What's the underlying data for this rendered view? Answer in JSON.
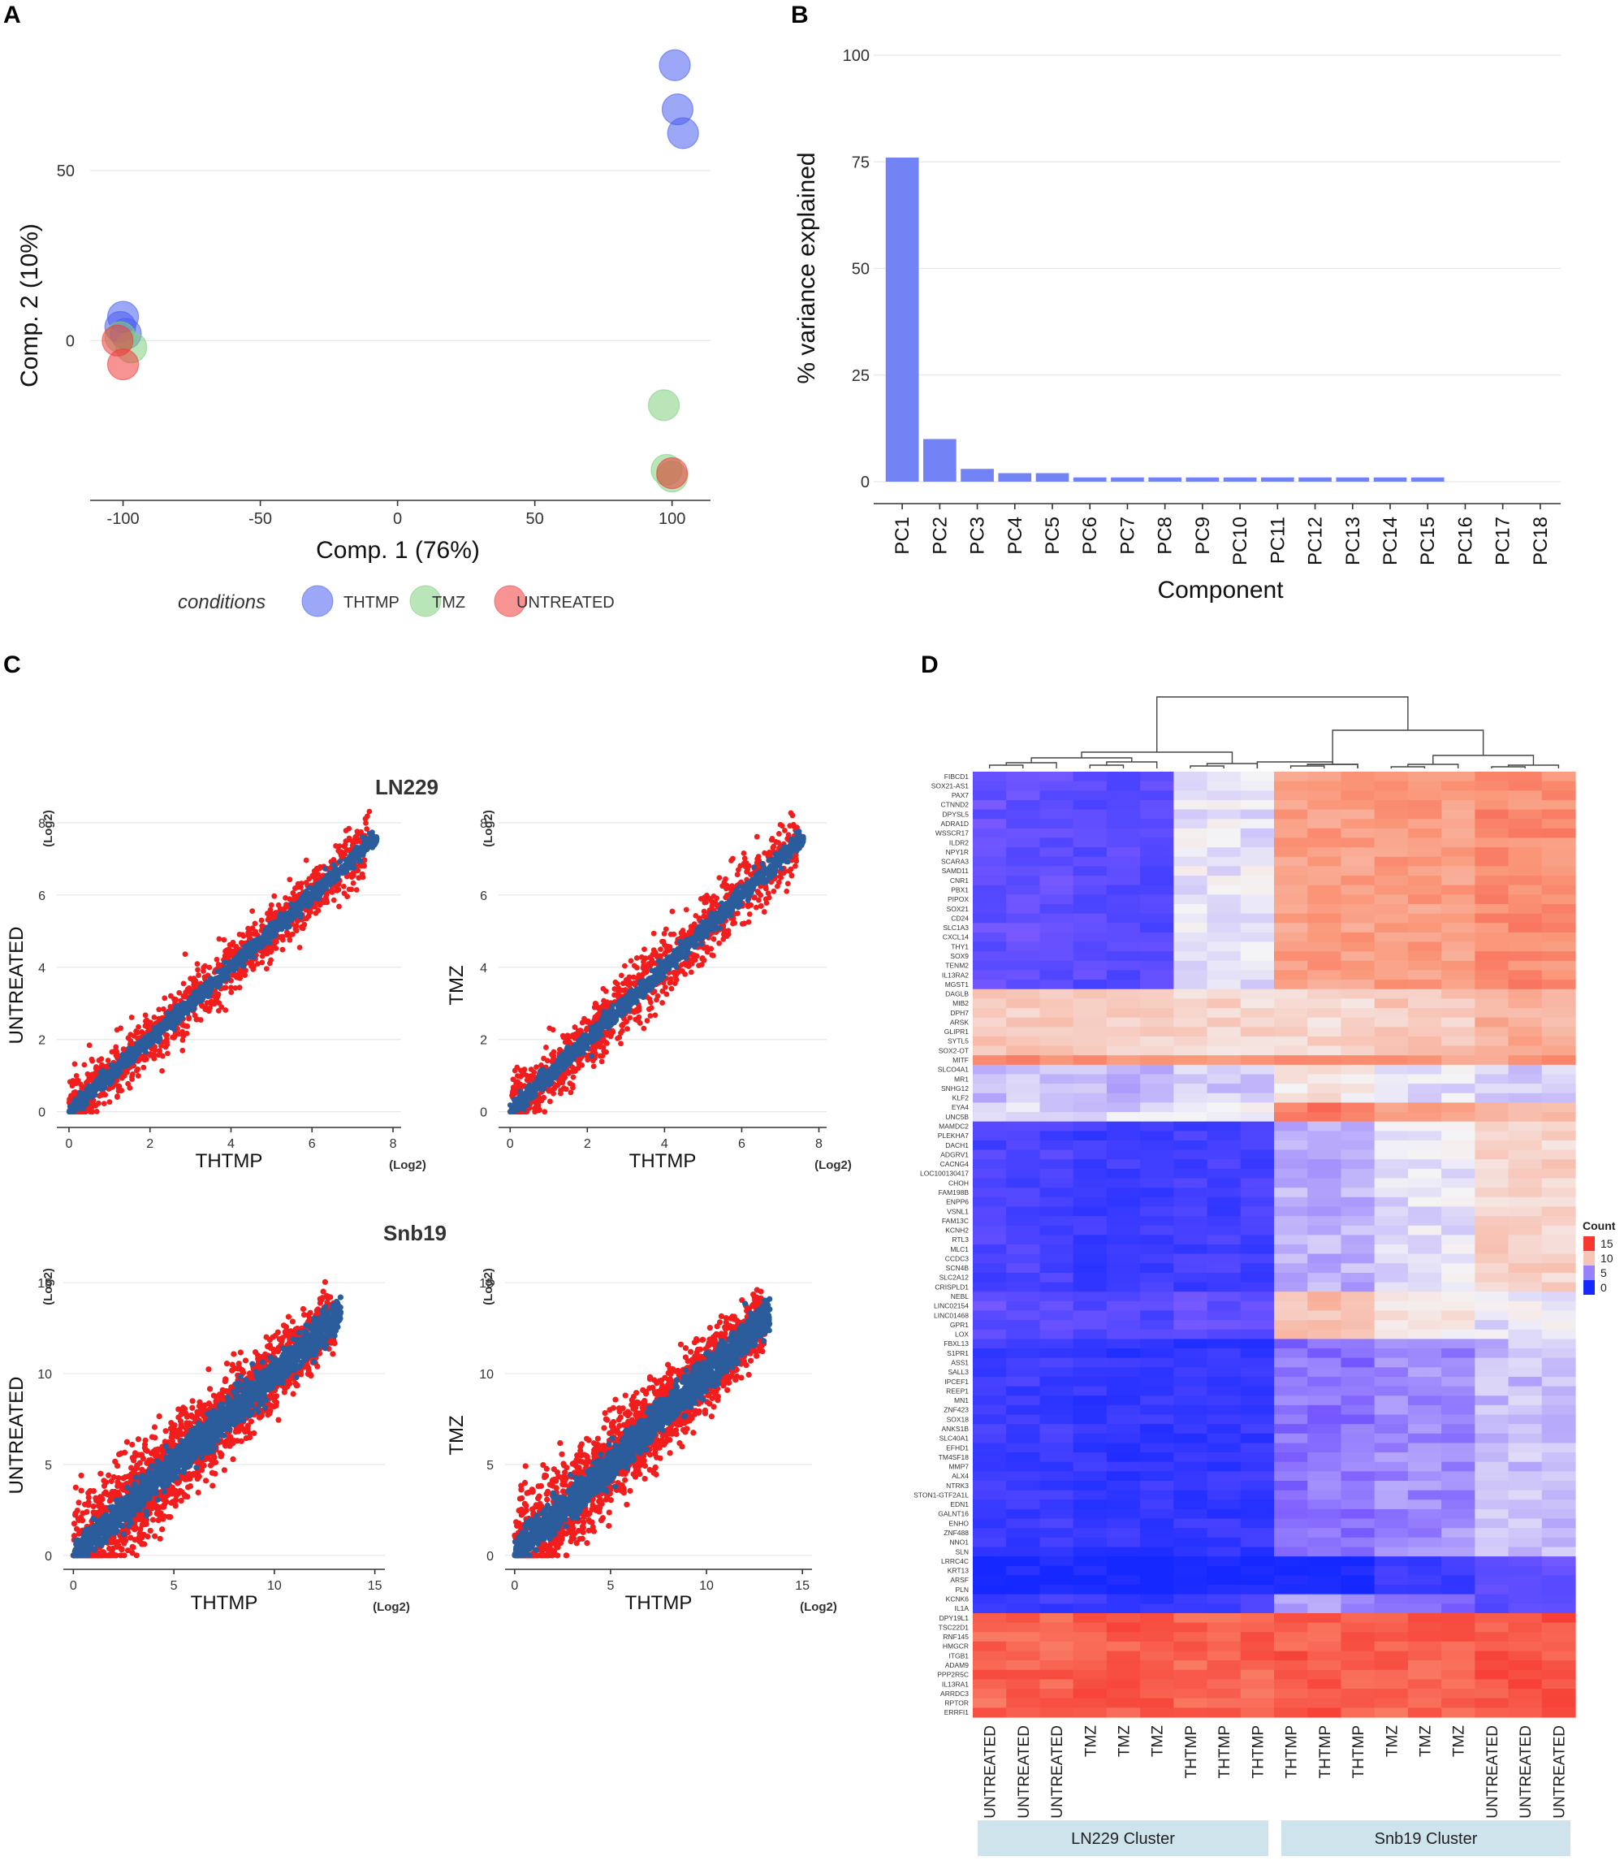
{
  "panels": {
    "a": "A",
    "b": "B",
    "c": "C",
    "d": "D"
  },
  "colors": {
    "thtmp": "#4a5ff0",
    "tmz": "#7fcf7f",
    "untreated": "#f23b3b",
    "bar": "#7283f5",
    "scatter_red": "#f21d1d",
    "scatter_blue": "#2b5c9c",
    "cluster_box": "#cfe3ec"
  },
  "chart_data": [
    {
      "id": "pca",
      "type": "scatter",
      "xlabel": "Comp. 1 (76%)",
      "ylabel": "Comp. 2 (10%)",
      "xticks": [
        -100,
        -50,
        0,
        50,
        100
      ],
      "yticks": [
        0,
        50
      ],
      "xlim": [
        -112,
        114
      ],
      "ylim": [
        -47,
        93
      ],
      "legend_title": "conditions",
      "legend": [
        "THTMP",
        "TMZ",
        "UNTREATED"
      ],
      "points": [
        {
          "group": "THTMP",
          "x": 101,
          "y": 81
        },
        {
          "group": "THTMP",
          "x": 102,
          "y": 68
        },
        {
          "group": "THTMP",
          "x": 104,
          "y": 61
        },
        {
          "group": "THTMP",
          "x": -100,
          "y": 7
        },
        {
          "group": "THTMP",
          "x": -101,
          "y": 4
        },
        {
          "group": "THTMP",
          "x": -99,
          "y": 2
        },
        {
          "group": "TMZ",
          "x": 97,
          "y": -19
        },
        {
          "group": "TMZ",
          "x": 98,
          "y": -38
        },
        {
          "group": "TMZ",
          "x": 100,
          "y": -40
        },
        {
          "group": "TMZ",
          "x": -101,
          "y": 1
        },
        {
          "group": "TMZ",
          "x": -97,
          "y": -2
        },
        {
          "group": "UNTREATED",
          "x": 100,
          "y": -39
        },
        {
          "group": "UNTREATED",
          "x": -102,
          "y": 0
        },
        {
          "group": "UNTREATED",
          "x": -100,
          "y": -7
        }
      ]
    },
    {
      "id": "scree",
      "type": "bar",
      "xlabel": "Component",
      "ylabel": "% variance explained",
      "categories": [
        "PC1",
        "PC2",
        "PC3",
        "PC4",
        "PC5",
        "PC6",
        "PC7",
        "PC8",
        "PC9",
        "PC10",
        "PC11",
        "PC12",
        "PC13",
        "PC14",
        "PC15",
        "PC16",
        "PC17",
        "PC18"
      ],
      "values": [
        76,
        10,
        3,
        2,
        2,
        1,
        1,
        1,
        1,
        1,
        1,
        1,
        1,
        1,
        1,
        0,
        0,
        0
      ],
      "yticks": [
        0,
        25,
        50,
        75,
        100
      ],
      "ylim": [
        0,
        100
      ]
    },
    {
      "id": "ln229_untreated",
      "type": "scatter",
      "group_title": "LN229",
      "xlabel": "THTMP",
      "ylabel": "UNTREATED",
      "unit": "(Log2)",
      "xticks": [
        0,
        2,
        4,
        6,
        8
      ],
      "yticks": [
        0,
        2,
        4,
        6,
        8
      ],
      "xlim": [
        -0.3,
        8.2
      ],
      "ylim": [
        -0.3,
        8.2
      ],
      "max": 7.6,
      "spread": 0.38
    },
    {
      "id": "ln229_tmz",
      "type": "scatter",
      "xlabel": "THTMP",
      "ylabel": "TMZ",
      "unit": "(Log2)",
      "xticks": [
        0,
        2,
        4,
        6,
        8
      ],
      "yticks": [
        0,
        2,
        4,
        6,
        8
      ],
      "xlim": [
        -0.3,
        8.2
      ],
      "ylim": [
        -0.3,
        8.2
      ],
      "max": 7.6,
      "spread": 0.42
    },
    {
      "id": "snb19_untreated",
      "type": "scatter",
      "group_title": "Snb19",
      "xlabel": "THTMP",
      "ylabel": "UNTREATED",
      "unit": "(Log2)",
      "xticks": [
        0,
        5,
        10,
        15
      ],
      "yticks": [
        0,
        5,
        10,
        15
      ],
      "xlim": [
        -0.5,
        15.5
      ],
      "ylim": [
        -0.5,
        15.5
      ],
      "max": 13.3,
      "spread": 1.3
    },
    {
      "id": "snb19_tmz",
      "type": "scatter",
      "xlabel": "THTMP",
      "ylabel": "TMZ",
      "unit": "(Log2)",
      "xticks": [
        0,
        5,
        10,
        15
      ],
      "yticks": [
        0,
        5,
        10,
        15
      ],
      "xlim": [
        -0.5,
        15.5
      ],
      "ylim": [
        -0.5,
        15.5
      ],
      "max": 13.3,
      "spread": 1.3
    },
    {
      "id": "heatmap",
      "type": "heatmap",
      "legend_title": "Count",
      "legend_ticks": [
        15,
        10,
        5,
        0
      ],
      "range": [
        0,
        16
      ],
      "columns": [
        "UNTREATED",
        "UNTREATED",
        "UNTREATED",
        "TMZ",
        "TMZ",
        "TMZ",
        "THTMP",
        "THTMP",
        "THTMP",
        "THTMP",
        "THTMP",
        "THTMP",
        "TMZ",
        "TMZ",
        "TMZ",
        "UNTREATED",
        "UNTREATED",
        "UNTREATED"
      ],
      "clusters": [
        "LN229 Cluster",
        "Snb19 Cluster"
      ],
      "genes": [
        "FIBCD1",
        "SOX21-AS1",
        "PAX7",
        "CTNND2",
        "DPYSL5",
        "ADRA1D",
        "WSSCR17",
        "ILDR2",
        "NPY1R",
        "SCARA3",
        "SAMD11",
        "CNR1",
        "PBX1",
        "PIPOX",
        "SOX21",
        "CD24",
        "SLC1A3",
        "CXCL14",
        "THY1",
        "SOX9",
        "TENM2",
        "IL13RA2",
        "MGST1",
        "DAGLB",
        "MIB2",
        "DPH7",
        "ARSK",
        "GLIPR1",
        "SYTL5",
        "SOX2-OT",
        "MITF",
        "SLCO4A1",
        "MR1",
        "SNHG12",
        "KLF2",
        "EYA4",
        "UNC5B",
        "MAMDC2",
        "PLEKHA7",
        "DACH1",
        "ADGRV1",
        "CACNG4",
        "LOC100130417",
        "CHOH",
        "FAM198B",
        "ENPP6",
        "VSNL1",
        "FAM13C",
        "KCNH2",
        "RTL3",
        "MLC1",
        "CCDC3",
        "SCN4B",
        "SLC2A12",
        "CRISPLD1",
        "NEBL",
        "LINC02154",
        "LINC01468",
        "GPR1",
        "LOX",
        "FBXL13",
        "S1PR1",
        "ASS1",
        "SALL3",
        "IPCEF1",
        "REEP1",
        "MN1",
        "ZNF423",
        "SOX18",
        "ANKS1B",
        "SLC40A1",
        "EFHD1",
        "TM4SF18",
        "MMP7",
        "ALX4",
        "NTRK3",
        "STON1-GTF2A1L",
        "EDN1",
        "GALNT16",
        "ENHO",
        "ZNF488",
        "NNO1",
        "SLN",
        "LRRC4C",
        "KRT13",
        "ARSF",
        "PLN",
        "KCNK6",
        "IL1A",
        "DPY19L1",
        "TSC22D1",
        "RNF145",
        "HMGCR",
        "ITGB1",
        "ADAM9",
        "PPP2R5C",
        "IL13RA1",
        "ARRDC3",
        "RPTOR",
        "ERRFI1"
      ],
      "blocks": [
        {
          "from": 0,
          "to": 23,
          "vals": [
            3.2,
            3.2,
            2.7,
            2.7,
            7.6,
            7.6,
            11.6,
            11.6,
            12.3
          ]
        },
        {
          "from": 23,
          "to": 30,
          "vals": [
            9.8,
            9.8,
            9.5,
            9.5,
            9.3,
            9.3,
            9.2,
            9.2,
            11.0
          ]
        },
        {
          "from": 30,
          "to": 31,
          "vals": [
            12.6,
            12.6,
            12.2,
            12.2,
            11.8,
            11.8,
            12.4,
            12.4,
            11.8
          ]
        },
        {
          "from": 31,
          "to": 35,
          "vals": [
            6.6,
            6.6,
            6.4,
            6.4,
            7.0,
            7.0,
            8.6,
            8.6,
            7.2
          ]
        },
        {
          "from": 35,
          "to": 37,
          "vals": [
            7.2,
            7.2,
            7.2,
            7.2,
            7.6,
            7.6,
            12.8,
            12.8,
            10.4
          ]
        },
        {
          "from": 37,
          "to": 55,
          "vals": [
            2.2,
            2.2,
            1.6,
            1.6,
            1.9,
            1.9,
            6.2,
            6.2,
            9.4
          ]
        },
        {
          "from": 55,
          "to": 60,
          "vals": [
            3.0,
            3.0,
            2.6,
            2.6,
            3.2,
            3.2,
            10.2,
            10.2,
            7.6
          ]
        },
        {
          "from": 60,
          "to": 83,
          "vals": [
            1.6,
            1.6,
            1.2,
            1.2,
            1.2,
            1.2,
            4.6,
            4.6,
            6.6
          ]
        },
        {
          "from": 83,
          "to": 87,
          "vals": [
            0.2,
            0.2,
            0.1,
            0.1,
            0.2,
            0.2,
            0.1,
            0.1,
            3.4
          ]
        },
        {
          "from": 87,
          "to": 89,
          "vals": [
            1.6,
            1.6,
            1.6,
            1.6,
            1.8,
            1.8,
            5.6,
            5.6,
            3.0
          ]
        },
        {
          "from": 89,
          "to": 100,
          "vals": [
            13.6,
            13.6,
            13.9,
            13.9,
            13.6,
            13.6,
            13.9,
            13.9,
            14.1
          ]
        }
      ]
    }
  ]
}
